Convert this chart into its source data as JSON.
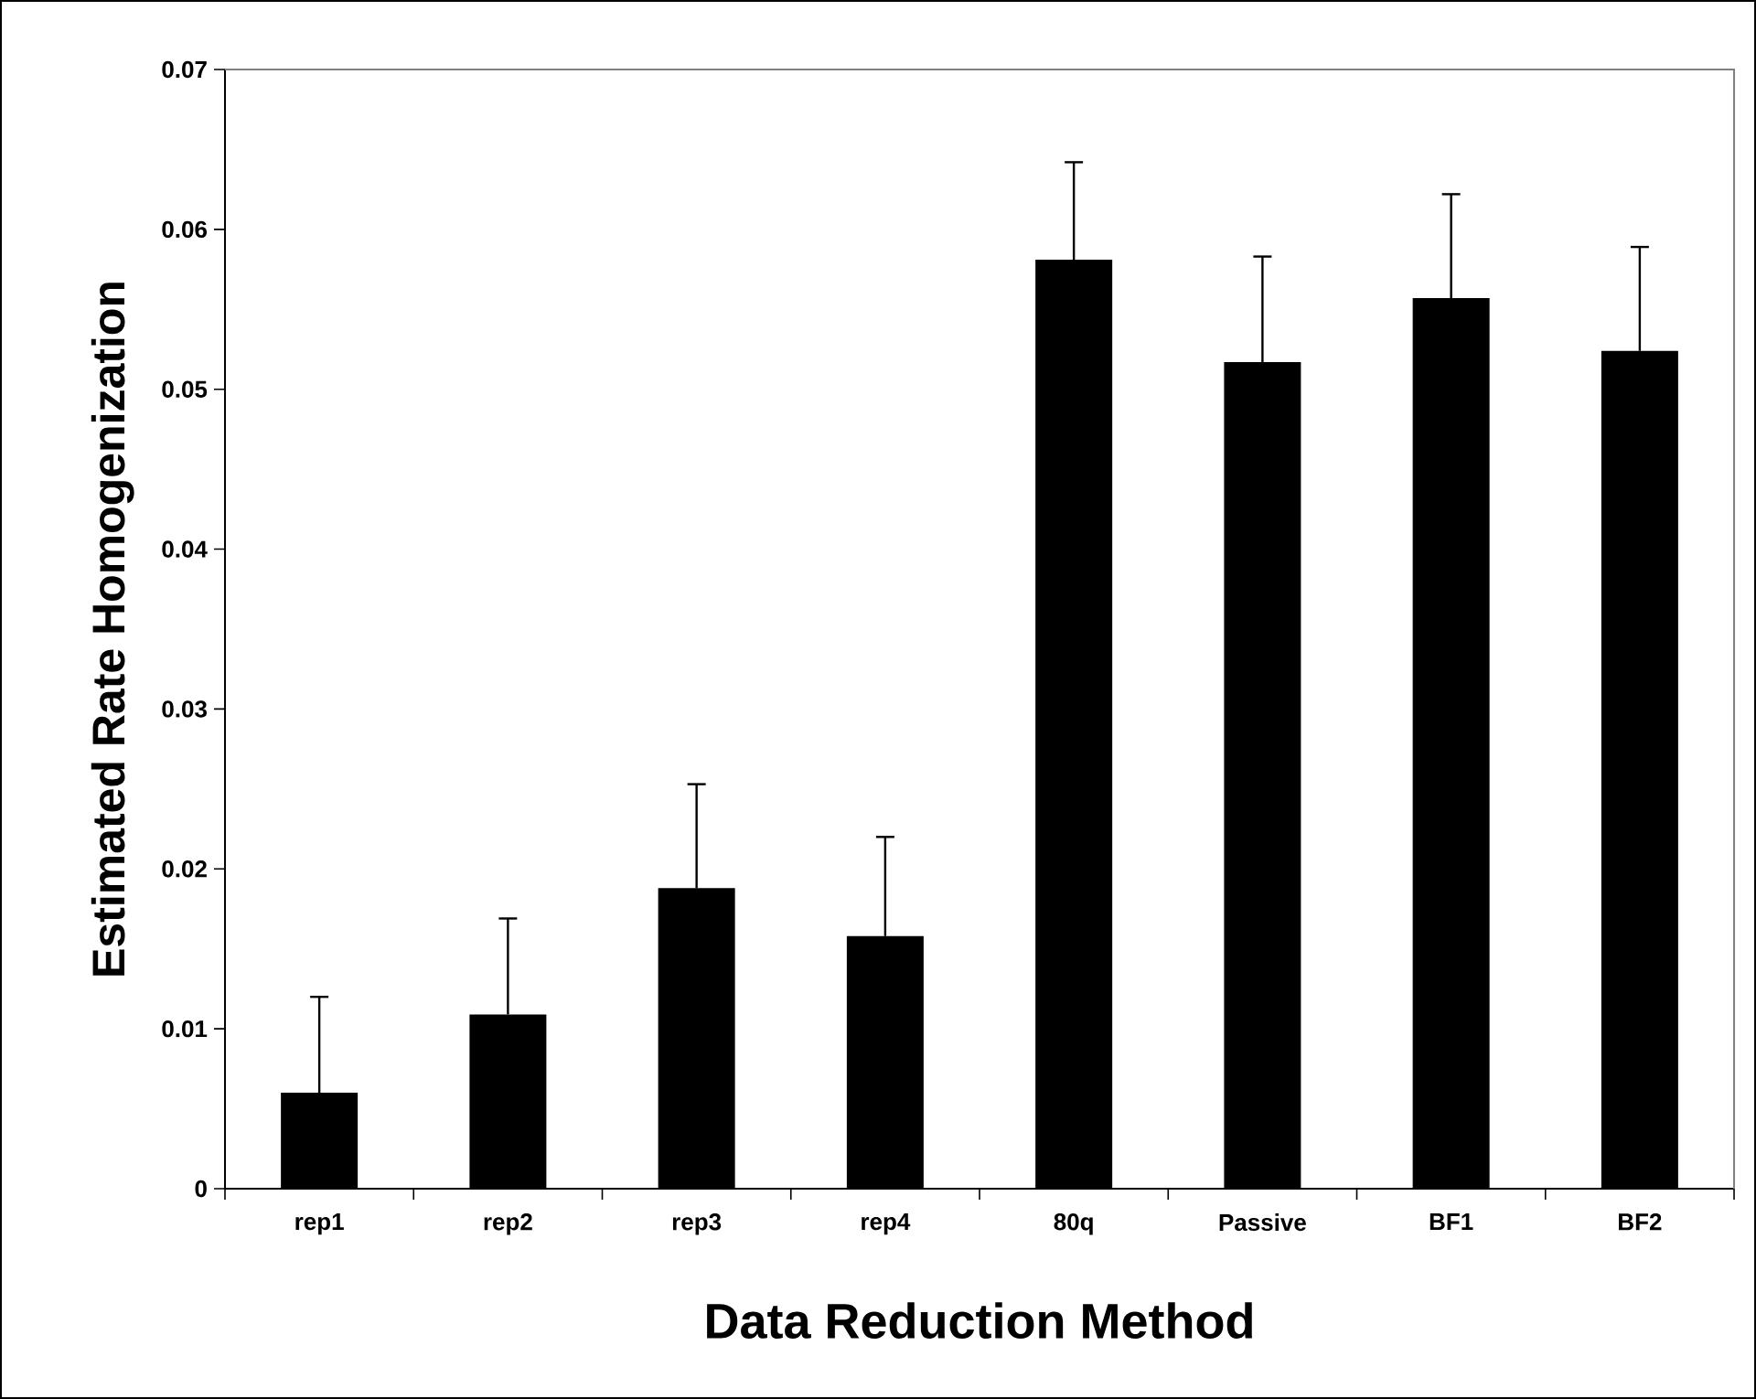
{
  "chart_data": {
    "type": "bar",
    "xlabel": "Data Reduction Method",
    "ylabel": "Estimated Rate Homogenization",
    "categories": [
      "rep1",
      "rep2",
      "rep3",
      "rep4",
      "80q",
      "Passive",
      "BF1",
      "BF2"
    ],
    "values": [
      0.006,
      0.0109,
      0.0188,
      0.0158,
      0.0581,
      0.0517,
      0.0557,
      0.0524
    ],
    "errors": [
      0.006,
      0.006,
      0.0065,
      0.0062,
      0.0061,
      0.0066,
      0.0065,
      0.0065
    ],
    "color": "#000000",
    "ylim": [
      0,
      0.07
    ],
    "yticks": [
      0,
      0.01,
      0.02,
      0.03,
      0.04,
      0.05,
      0.06,
      0.07
    ],
    "grid": false
  }
}
